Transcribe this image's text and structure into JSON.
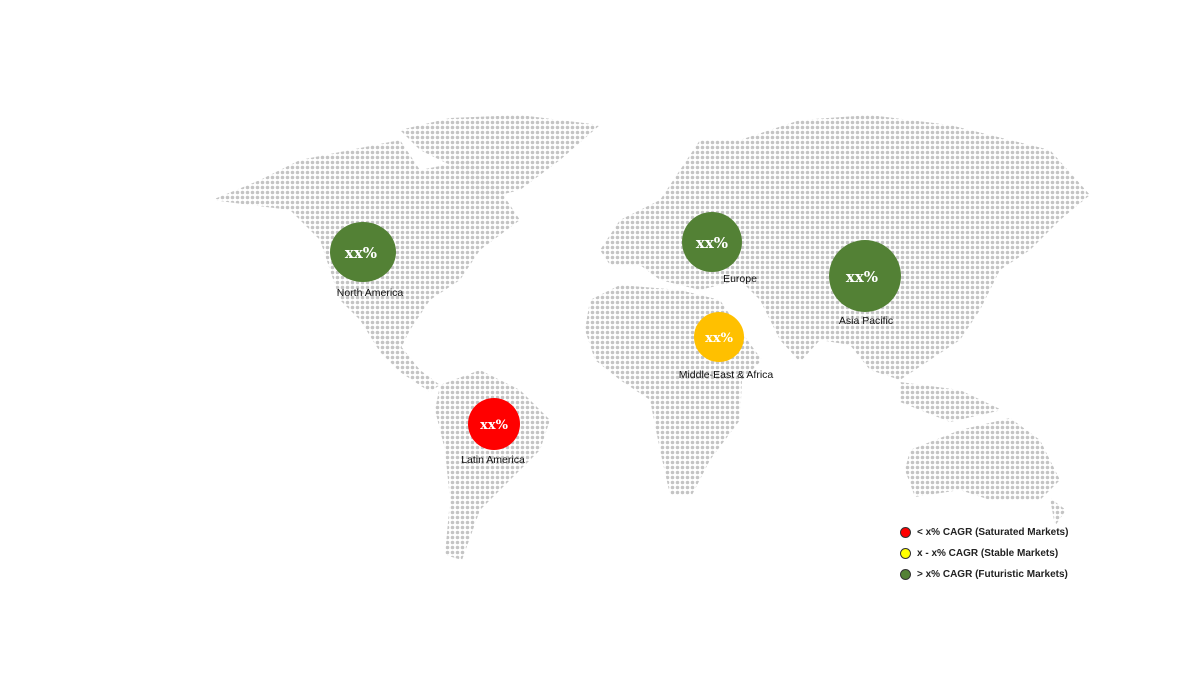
{
  "colors": {
    "futuristic": "#538135",
    "stable_bubble": "#ffc000",
    "saturated": "#ff0000",
    "stable_legend": "#ffff00",
    "map_dots": "#c4c4c4"
  },
  "regions": [
    {
      "name": "North America",
      "value": "xx%",
      "category": "futuristic"
    },
    {
      "name": "Europe",
      "value": "xx%",
      "category": "futuristic"
    },
    {
      "name": "Asia Pacific",
      "value": "xx%",
      "category": "futuristic"
    },
    {
      "name": "Middle-East & Africa",
      "value": "xx%",
      "category": "stable"
    },
    {
      "name": "Latin America",
      "value": "xx%",
      "category": "saturated"
    }
  ],
  "legend": [
    {
      "label": "< x% CAGR (Saturated Markets)",
      "color": "#ff0000"
    },
    {
      "label": "x - x% CAGR (Stable Markets)",
      "color": "#ffff00"
    },
    {
      "label": "> x% CAGR (Futuristic Markets)",
      "color": "#538135"
    }
  ]
}
